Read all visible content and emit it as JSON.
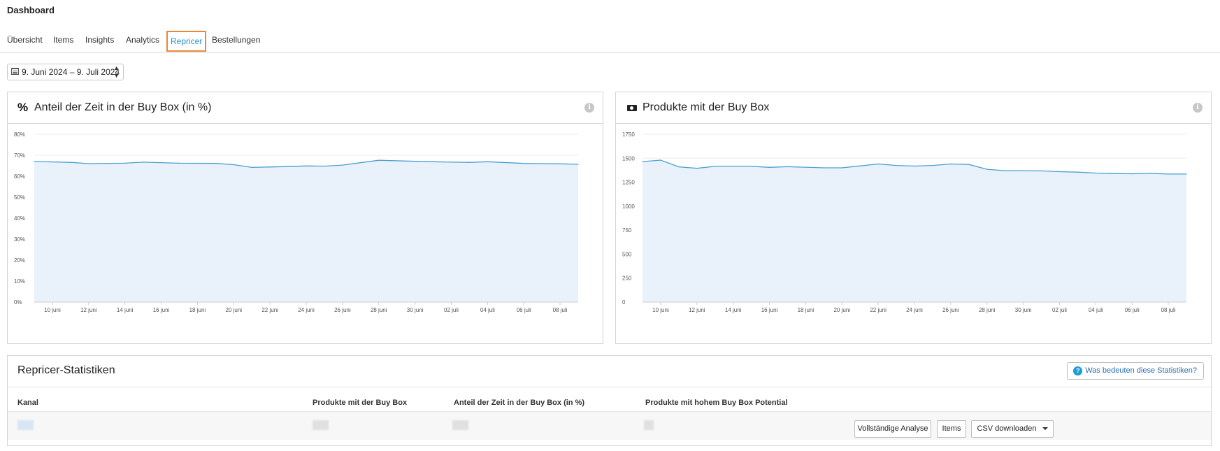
{
  "header": {
    "title": "Dashboard"
  },
  "tabs": [
    {
      "label": "Übersicht"
    },
    {
      "label": "Items"
    },
    {
      "label": "Insights"
    },
    {
      "label": "Analytics"
    },
    {
      "label": "Repricer",
      "active": true
    },
    {
      "label": "Bestellungen"
    }
  ],
  "date_range": {
    "label": "9. Juni 2024 – 9. Juli 2024"
  },
  "colors": {
    "accent": "#2a8fd0",
    "active_tab_outline": "#e8863a",
    "line": "#4a9fd0",
    "area": "#e9f2fb"
  },
  "chart_data": [
    {
      "type": "area",
      "title": "Anteil der Zeit in der Buy Box (in %)",
      "icon": "percent-icon",
      "y_ticks": [
        "0%",
        "10%",
        "20%",
        "30%",
        "40%",
        "50%",
        "60%",
        "70%",
        "80%"
      ],
      "ylim": [
        0,
        80
      ],
      "x_ticks": [
        "10 juni",
        "12 juni",
        "14 juni",
        "16 juni",
        "18 juni",
        "20 juni",
        "22 juni",
        "24 juni",
        "26 juni",
        "28 juni",
        "30 juni",
        "02 juli",
        "04 juli",
        "06 juli",
        "08 juli"
      ],
      "xlim": [
        9,
        39
      ],
      "x": [
        9,
        11,
        12,
        14,
        15,
        17,
        19,
        20,
        21,
        23,
        24,
        25,
        26,
        28,
        30,
        32,
        33,
        34,
        36,
        38,
        39
      ],
      "values": [
        67,
        66.6,
        66,
        66.2,
        66.7,
        66.2,
        66.1,
        65.5,
        64.2,
        64.6,
        64.9,
        64.8,
        65.3,
        67.6,
        67.1,
        66.7,
        66.6,
        66.9,
        66.1,
        65.9,
        65.7
      ]
    },
    {
      "type": "area",
      "title": "Produkte mit der Buy Box",
      "icon": "money-bill-icon",
      "y_ticks": [
        "0",
        "250",
        "500",
        "750",
        "1000",
        "1250",
        "1500",
        "1750"
      ],
      "ylim": [
        0,
        1750
      ],
      "x_ticks": [
        "10 juni",
        "12 juni",
        "14 juni",
        "16 juni",
        "18 juni",
        "20 juni",
        "22 juni",
        "24 juni",
        "26 juni",
        "28 juni",
        "30 juni",
        "02 juli",
        "04 juli",
        "06 juli",
        "08 juli"
      ],
      "xlim": [
        9,
        39
      ],
      "x": [
        9,
        10,
        11,
        12,
        13,
        15,
        16,
        17,
        19,
        20,
        21,
        22,
        23,
        24,
        25,
        26,
        27,
        28,
        29,
        30,
        31,
        32,
        33,
        34,
        35,
        36,
        37,
        38,
        39
      ],
      "values": [
        1465,
        1480,
        1410,
        1395,
        1415,
        1415,
        1405,
        1412,
        1400,
        1400,
        1420,
        1440,
        1425,
        1418,
        1425,
        1440,
        1435,
        1385,
        1370,
        1370,
        1368,
        1360,
        1355,
        1345,
        1340,
        1338,
        1342,
        1335,
        1335
      ]
    }
  ],
  "stats": {
    "title": "Repricer-Statistiken",
    "help_button": "Was bedeuten diese Statistiken?",
    "columns": [
      "Kanal",
      "Produkte mit der Buy Box",
      "Anteil der Zeit in der Buy Box (in %)",
      "Produkte mit hohem Buy Box Potential"
    ],
    "buttons": {
      "analysis": "Vollständige Analyse",
      "items": "Items",
      "csv": "CSV downloaden"
    }
  }
}
